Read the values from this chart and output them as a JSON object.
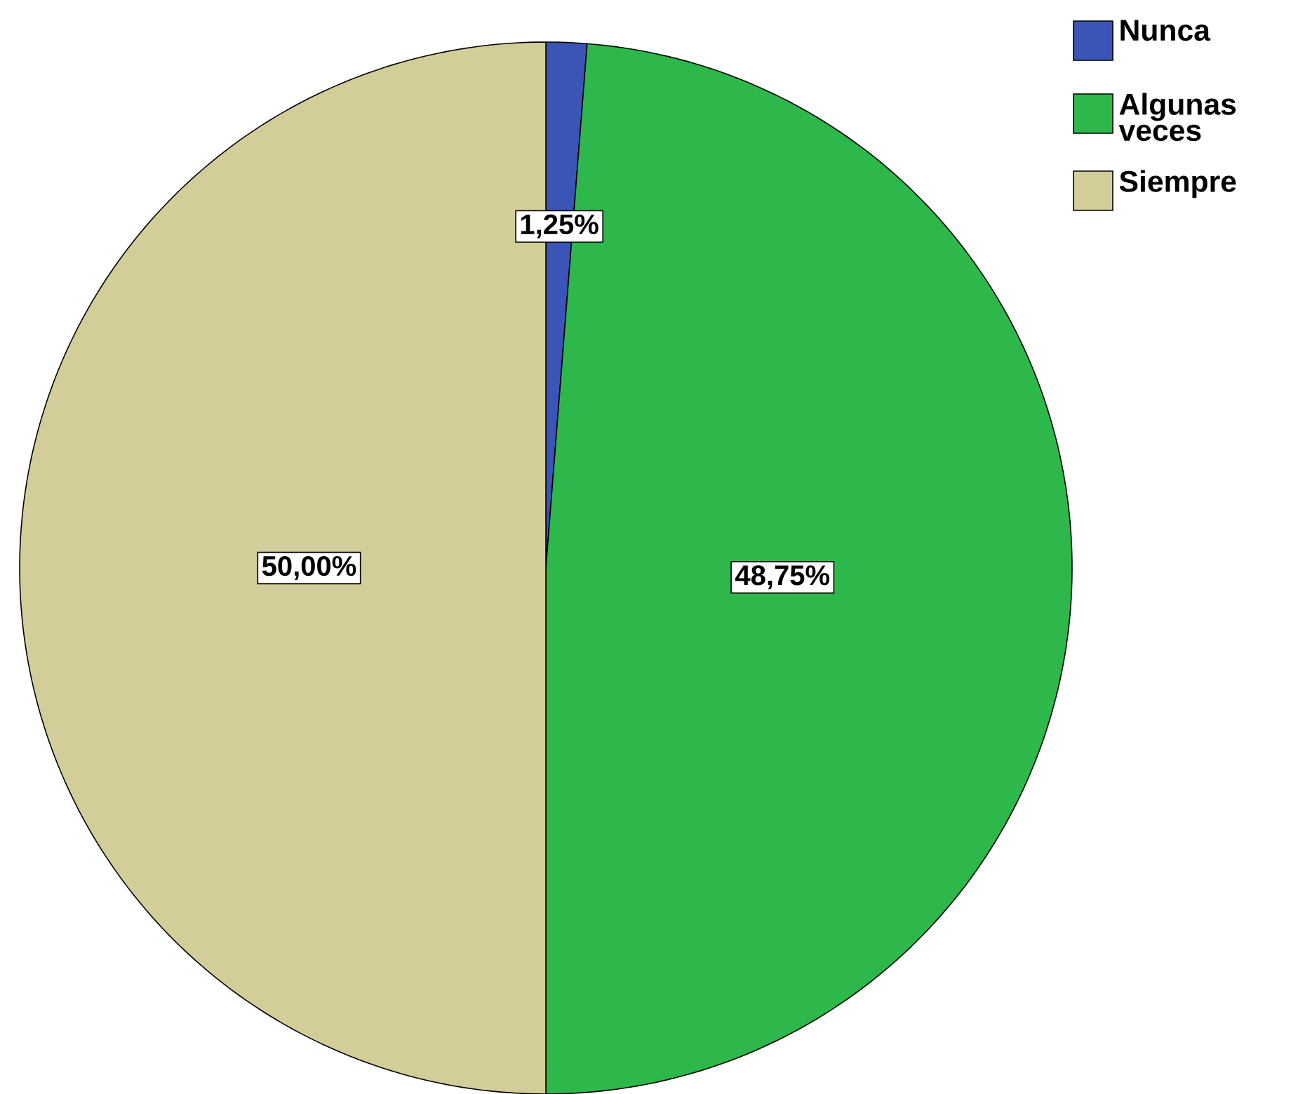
{
  "chart_data": {
    "type": "pie",
    "categories": [
      "Nunca",
      "Algunas veces",
      "Siempre"
    ],
    "values": [
      1.25,
      48.75,
      50.0
    ],
    "colors": [
      "#3a55b5",
      "#2eb84b",
      "#d3cd99"
    ],
    "value_labels": [
      "1,25%",
      "48,75%",
      "50,00%"
    ],
    "legend": "top right"
  }
}
